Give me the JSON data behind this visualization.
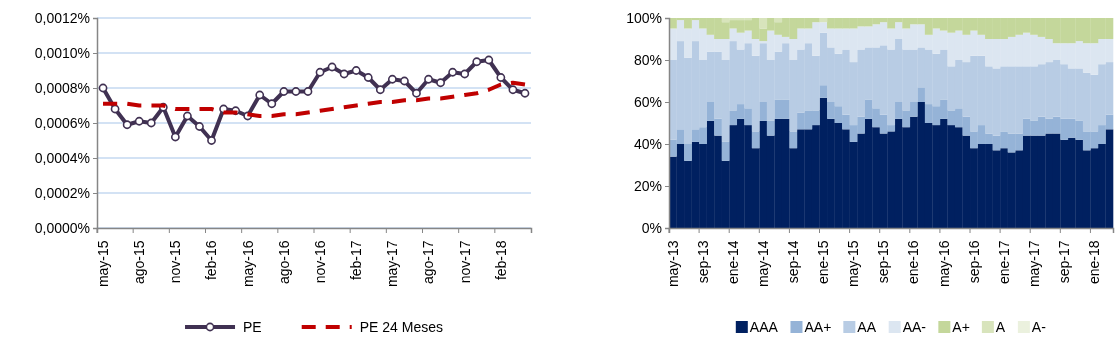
{
  "chart_data": [
    {
      "type": "line",
      "categories": [
        "may-15",
        null,
        null,
        "ago-15",
        null,
        null,
        "nov-15",
        null,
        null,
        "feb-16",
        null,
        null,
        "may-16",
        null,
        null,
        "ago-16",
        null,
        null,
        "nov-16",
        null,
        null,
        "feb-17",
        null,
        null,
        "may-17",
        null,
        null,
        "ago-17",
        null,
        null,
        "nov-17",
        null,
        null,
        "feb-18",
        null,
        null
      ],
      "series": [
        {
          "name": "PE",
          "color": "#403152",
          "marker": "circle",
          "line_style": "solid",
          "values": [
            0.0008,
            0.00068,
            0.00059,
            0.00061,
            0.0006,
            0.00069,
            0.00052,
            0.00064,
            0.00058,
            0.0005,
            0.00068,
            0.00067,
            0.00064,
            0.00076,
            0.00071,
            0.00078,
            0.00078,
            0.00078,
            0.00089,
            0.00092,
            0.00088,
            0.0009,
            0.00086,
            0.00079,
            0.00085,
            0.00084,
            0.00077,
            0.00085,
            0.00083,
            0.00089,
            0.00088,
            0.00095,
            0.00096,
            0.00086,
            0.00079,
            0.00077
          ]
        },
        {
          "name": "PE 24 Meses",
          "color": "#c00000",
          "marker": "none",
          "line_style": "dashed",
          "values": [
            0.00071,
            0.00071,
            0.00071,
            0.0007,
            0.0007,
            0.0007,
            0.00068,
            0.00068,
            0.00068,
            0.00068,
            0.00066,
            0.00066,
            0.00065,
            0.00064,
            0.00064,
            0.00065,
            0.00065,
            0.00066,
            0.00067,
            0.00068,
            0.00069,
            0.0007,
            0.00071,
            0.00072,
            0.00072,
            0.00073,
            0.00073,
            0.00074,
            0.00074,
            0.00075,
            0.00076,
            0.00077,
            0.00079,
            0.00082,
            0.00083,
            0.00082
          ]
        }
      ],
      "ylim": [
        0,
        0.0012
      ],
      "yticks": [
        {
          "value": 0,
          "label": "0,0000%"
        },
        {
          "value": 0.0002,
          "label": "0,0002%"
        },
        {
          "value": 0.0004,
          "label": "0,0004%"
        },
        {
          "value": 0.0006,
          "label": "0,0006%"
        },
        {
          "value": 0.0008,
          "label": "0,0008%"
        },
        {
          "value": 0.001,
          "label": "0,0010%"
        },
        {
          "value": 0.0012,
          "label": "0,0012%"
        }
      ],
      "grid": "y",
      "legend": "bottom"
    },
    {
      "type": "bar",
      "stacked": true,
      "categories": [
        "may-13",
        null,
        null,
        null,
        "sep-13",
        null,
        null,
        null,
        "ene-14",
        null,
        null,
        null,
        "may-14",
        null,
        null,
        null,
        "sep-14",
        null,
        null,
        null,
        "ene-15",
        null,
        null,
        null,
        "may-15",
        null,
        null,
        null,
        "sep-15",
        null,
        null,
        null,
        "ene-16",
        null,
        null,
        null,
        "may-16",
        null,
        null,
        null,
        "sep-16",
        null,
        null,
        null,
        "ene-17",
        null,
        null,
        null,
        "may-17",
        null,
        null,
        null,
        "sep-17",
        null,
        null,
        null,
        "ene-18",
        null,
        null
      ],
      "series": [
        {
          "name": "AAA",
          "color": "#002060",
          "values": [
            34,
            40,
            32,
            41,
            40,
            51,
            44,
            32,
            49,
            52,
            49,
            38,
            51,
            44,
            52,
            52,
            38,
            47,
            47,
            49,
            62,
            52,
            50,
            47,
            41,
            45,
            52,
            48,
            45,
            46,
            52,
            48,
            53,
            60,
            50,
            49,
            52,
            49,
            48,
            44,
            38,
            40,
            40,
            37,
            38,
            36,
            37,
            44,
            44,
            44,
            45,
            45,
            42,
            43,
            42,
            37,
            38,
            40,
            47
          ]
        },
        {
          "name": "AA+",
          "color": "#95b3d7",
          "values": [
            8,
            7,
            8,
            6,
            8,
            9,
            8,
            9,
            7,
            7,
            8,
            8,
            9,
            7,
            9,
            9,
            8,
            8,
            9,
            7,
            6,
            8,
            8,
            7,
            8,
            8,
            9,
            9,
            9,
            3,
            8,
            8,
            7,
            7,
            9,
            9,
            9,
            7,
            9,
            9,
            8,
            9,
            5,
            7,
            8,
            9,
            8,
            8,
            7,
            9,
            7,
            8,
            10,
            9,
            9,
            9,
            8,
            9,
            7
          ]
        },
        {
          "name": "AA",
          "color": "#b8cce4",
          "values": [
            38,
            42,
            41,
            42,
            32,
            24,
            32,
            39,
            33,
            26,
            31,
            36,
            28,
            29,
            23,
            27,
            34,
            30,
            32,
            26,
            25,
            26,
            25,
            31,
            30,
            32,
            25,
            29,
            33,
            36,
            30,
            29,
            25,
            19,
            26,
            25,
            24,
            21,
            23,
            26,
            36,
            33,
            32,
            32,
            31,
            32,
            32,
            25,
            26,
            25,
            27,
            27,
            26,
            24,
            25,
            28,
            27,
            29,
            25
          ]
        },
        {
          "name": "AA-",
          "color": "#dce6f1",
          "values": [
            15,
            10,
            14,
            10,
            15,
            8,
            6,
            10,
            6,
            8,
            6,
            8,
            1,
            14,
            8,
            3,
            10,
            10,
            7,
            16,
            5,
            9,
            12,
            10,
            16,
            11,
            10,
            11,
            11,
            10,
            8,
            10,
            12,
            11,
            7,
            12,
            9,
            16,
            14,
            13,
            12,
            10,
            13,
            14,
            13,
            14,
            15,
            16,
            15,
            13,
            11,
            8,
            10,
            12,
            13,
            14,
            15,
            12,
            11
          ]
        },
        {
          "name": "A+",
          "color": "#c4d79b",
          "values": [
            5,
            1,
            5,
            1,
            5,
            8,
            10,
            8,
            4,
            6,
            5,
            10,
            6,
            6,
            6,
            9,
            10,
            5,
            5,
            2,
            0,
            5,
            5,
            5,
            5,
            4,
            4,
            3,
            2,
            5,
            2,
            5,
            3,
            3,
            8,
            5,
            6,
            7,
            6,
            8,
            6,
            8,
            10,
            10,
            10,
            9,
            8,
            7,
            8,
            9,
            10,
            12,
            12,
            12,
            11,
            12,
            12,
            10,
            10
          ]
        },
        {
          "name": "A",
          "color": "#d8e4bc",
          "values": [
            0,
            0,
            0,
            0,
            0,
            0,
            0,
            2,
            1,
            1,
            1,
            0,
            5,
            0,
            2,
            0,
            0,
            0,
            0,
            0,
            2,
            0,
            0,
            0,
            0,
            0,
            0,
            0,
            0,
            0,
            0,
            0,
            0,
            0,
            0,
            0,
            0,
            0,
            0,
            0,
            0,
            0,
            0,
            0,
            0,
            0,
            0,
            0,
            0,
            0,
            0,
            0,
            0,
            0,
            0,
            0,
            0,
            0,
            0
          ]
        },
        {
          "name": "A-",
          "color": "#ebf1de",
          "values": [
            0,
            0,
            0,
            0,
            0,
            0,
            0,
            0,
            0,
            0,
            0,
            0,
            0,
            0,
            0,
            0,
            0,
            0,
            0,
            0,
            0,
            0,
            0,
            0,
            0,
            0,
            0,
            0,
            0,
            0,
            0,
            0,
            0,
            0,
            0,
            0,
            0,
            0,
            0,
            0,
            0,
            0,
            0,
            0,
            0,
            0,
            0,
            0,
            0,
            0,
            0,
            0,
            0,
            0,
            0,
            0,
            0,
            0,
            0
          ]
        }
      ],
      "ylim": [
        0,
        100
      ],
      "yticks": [
        {
          "value": 0,
          "label": "0%"
        },
        {
          "value": 20,
          "label": "20%"
        },
        {
          "value": 40,
          "label": "40%"
        },
        {
          "value": 60,
          "label": "60%"
        },
        {
          "value": 80,
          "label": "80%"
        },
        {
          "value": 100,
          "label": "100%"
        }
      ],
      "grid": false,
      "legend": "bottom"
    }
  ]
}
